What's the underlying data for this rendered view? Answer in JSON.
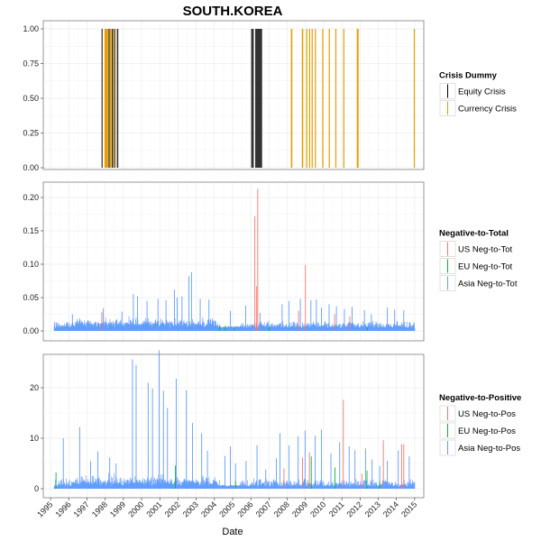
{
  "chart_data": {
    "title": "SOUTH.KOREA",
    "xlabel": "Date",
    "type": "multi-panel",
    "x_tick_labels": [
      "1995",
      "1996",
      "1997",
      "1998",
      "1999",
      "2000",
      "2001",
      "2002",
      "2003",
      "2004",
      "2005",
      "2006",
      "2007",
      "2008",
      "2009",
      "2010",
      "2011",
      "2012",
      "2013",
      "2014",
      "2015"
    ],
    "panels": [
      {
        "type": "bar",
        "ylim": [
          0,
          1
        ],
        "yticks": [
          "0.00",
          "0.25",
          "0.50",
          "0.75",
          "1.00"
        ],
        "legend": {
          "title": "Crisis Dummy",
          "placement": "right",
          "entries": [
            {
              "name": "Equity Crisis",
              "color": "#000000"
            },
            {
              "name": "Currency Crisis",
              "color": "#E69F00"
            }
          ]
        },
        "series": [
          {
            "name": "Equity Crisis",
            "color": "#333333",
            "intervals": [
              [
                1997.8,
                1997.86
              ],
              [
                1998.0,
                1998.05
              ],
              [
                1998.18,
                1998.22
              ],
              [
                1998.36,
                1998.44
              ],
              [
                1998.5,
                1998.56
              ],
              [
                1998.64,
                1998.72
              ],
              [
                2006.02,
                2006.16
              ],
              [
                2006.24,
                2006.62
              ]
            ]
          },
          {
            "name": "Currency Crisis",
            "color": "#E69F00",
            "intervals": [
              [
                1997.96,
                1998.16
              ],
              [
                1998.24,
                1998.34
              ],
              [
                1998.46,
                1998.5
              ],
              [
                2008.2,
                2008.28
              ],
              [
                2008.8,
                2008.88
              ],
              [
                2009.04,
                2009.1
              ],
              [
                2009.2,
                2009.26
              ],
              [
                2009.34,
                2009.4
              ],
              [
                2009.52,
                2009.56
              ],
              [
                2009.92,
                2009.98
              ],
              [
                2010.28,
                2010.34
              ],
              [
                2010.64,
                2010.68
              ],
              [
                2011.08,
                2011.14
              ],
              [
                2011.82,
                2011.92
              ],
              [
                2014.95,
                2015.0
              ]
            ]
          }
        ]
      },
      {
        "type": "line",
        "ylim": [
          0,
          0.22
        ],
        "yticks": [
          "0.00",
          "0.05",
          "0.10",
          "0.15",
          "0.20"
        ],
        "legend": {
          "title": "Negative-to-Total",
          "placement": "right",
          "entries": [
            {
              "name": "US Neg-to-Tot",
              "color": "#F8766D"
            },
            {
              "name": "EU Neg-to-Tot",
              "color": "#00BA38"
            },
            {
              "name": "Asia Neg-to-Tot",
              "color": "#619CFF"
            }
          ]
        },
        "series": [
          {
            "name": "US Neg-to-Tot",
            "color": "#F8766D",
            "spikes": [
              [
                2006.22,
                0.172
              ],
              [
                2006.38,
                0.213
              ],
              [
                2006.32,
                0.067
              ],
              [
                2009.0,
                0.099
              ],
              [
                1997.82,
                0.028
              ],
              [
                2008.62,
                0.03
              ],
              [
                2010.6,
                0.025
              ],
              [
                2011.44,
                0.022
              ]
            ]
          },
          {
            "name": "EU Neg-to-Tot",
            "color": "#00BA38",
            "spikes": [
              [
                2004.28,
                0.007
              ],
              [
                2004.6,
                0.008
              ],
              [
                2005.1,
                0.006
              ],
              [
                2007.02,
                0.006
              ],
              [
                2012.4,
                0.005
              ]
            ]
          },
          {
            "name": "Asia Neg-to-Tot",
            "color": "#619CFF",
            "baseline": 0.004,
            "noise": 0.012,
            "spikes": [
              [
                1996.2,
                0.025
              ],
              [
                1997.9,
                0.034
              ],
              [
                1998.92,
                0.029
              ],
              [
                1999.55,
                0.055
              ],
              [
                1999.78,
                0.052
              ],
              [
                2000.3,
                0.045
              ],
              [
                2000.9,
                0.048
              ],
              [
                2001.34,
                0.046
              ],
              [
                2001.8,
                0.062
              ],
              [
                2001.95,
                0.05
              ],
              [
                2002.22,
                0.052
              ],
              [
                2002.6,
                0.082
              ],
              [
                2002.74,
                0.088
              ],
              [
                2003.22,
                0.048
              ],
              [
                2003.7,
                0.047
              ],
              [
                2004.88,
                0.03
              ],
              [
                2005.72,
                0.038
              ],
              [
                2006.5,
                0.027
              ],
              [
                2007.72,
                0.04
              ],
              [
                2008.1,
                0.045
              ],
              [
                2008.72,
                0.048
              ],
              [
                2009.3,
                0.046
              ],
              [
                2009.6,
                0.047
              ],
              [
                2009.88,
                0.035
              ],
              [
                2010.3,
                0.04
              ],
              [
                2010.7,
                0.037
              ],
              [
                2011.14,
                0.033
              ],
              [
                2011.56,
                0.036
              ],
              [
                2012.24,
                0.031
              ],
              [
                2012.62,
                0.025
              ],
              [
                2013.5,
                0.035
              ],
              [
                2013.9,
                0.032
              ],
              [
                2014.4,
                0.031
              ]
            ]
          }
        ]
      },
      {
        "type": "line",
        "ylim": [
          0,
          28
        ],
        "yticks": [
          "0",
          "10",
          "20"
        ],
        "legend": {
          "title": "Negative-to-Positive",
          "placement": "right",
          "entries": [
            {
              "name": "US Neg-to-Pos",
              "color": "#F8766D"
            },
            {
              "name": "EU Neg-to-Pos",
              "color": "#00BA38"
            },
            {
              "name": "Asia Neg-to-Pos",
              "color": "#619CFF"
            }
          ]
        },
        "series": [
          {
            "name": "US Neg-to-Pos",
            "color": "#F8766D",
            "spikes": [
              [
                2008.84,
                6.2
              ],
              [
                2009.22,
                7.2
              ],
              [
                2011.08,
                17.6
              ],
              [
                2013.28,
                9.6
              ],
              [
                2014.28,
                8.8
              ],
              [
                2014.4,
                8.8
              ],
              [
                2012.1,
                3.0
              ],
              [
                2007.82,
                4.0
              ]
            ]
          },
          {
            "name": "EU Neg-to-Pos",
            "color": "#00BA38",
            "spikes": [
              [
                1995.3,
                3.2
              ],
              [
                2001.86,
                4.6
              ],
              [
                2005.16,
                1.6
              ],
              [
                2009.32,
                6.4
              ],
              [
                2010.62,
                4.2
              ],
              [
                2012.38,
                3.6
              ],
              [
                2013.08,
                1.5
              ]
            ]
          },
          {
            "name": "Asia Neg-to-Pos",
            "color": "#619CFF",
            "baseline": 0.3,
            "noise": 1.8,
            "spikes": [
              [
                1995.7,
                10.0
              ],
              [
                1996.6,
                12.2
              ],
              [
                1997.2,
                5.5
              ],
              [
                1997.6,
                7.4
              ],
              [
                1998.25,
                6.2
              ],
              [
                1998.6,
                5.0
              ],
              [
                1999.5,
                25.6
              ],
              [
                1999.7,
                24.5
              ],
              [
                2000.36,
                21.0
              ],
              [
                2000.6,
                19.8
              ],
              [
                2000.96,
                27.4
              ],
              [
                2001.2,
                19.4
              ],
              [
                2001.42,
                16.0
              ],
              [
                2001.9,
                21.8
              ],
              [
                2002.46,
                19.5
              ],
              [
                2002.8,
                13.0
              ],
              [
                2003.3,
                11.0
              ],
              [
                2003.62,
                7.5
              ],
              [
                2004.58,
                6.5
              ],
              [
                2004.88,
                8.4
              ],
              [
                2005.16,
                5.0
              ],
              [
                2005.74,
                5.5
              ],
              [
                2006.34,
                8.6
              ],
              [
                2006.82,
                3.8
              ],
              [
                2007.4,
                6.0
              ],
              [
                2007.6,
                11.0
              ],
              [
                2008.1,
                8.6
              ],
              [
                2008.6,
                10.4
              ],
              [
                2008.98,
                11.5
              ],
              [
                2009.54,
                10.5
              ],
              [
                2009.88,
                11.7
              ],
              [
                2010.4,
                7.0
              ],
              [
                2010.88,
                9.2
              ],
              [
                2011.4,
                8.4
              ],
              [
                2011.72,
                7.6
              ],
              [
                2012.3,
                8.0
              ],
              [
                2012.66,
                5.8
              ],
              [
                2013.08,
                4.5
              ],
              [
                2013.5,
                5.5
              ],
              [
                2014.1,
                7.6
              ],
              [
                2014.7,
                6.4
              ]
            ]
          }
        ]
      }
    ]
  }
}
